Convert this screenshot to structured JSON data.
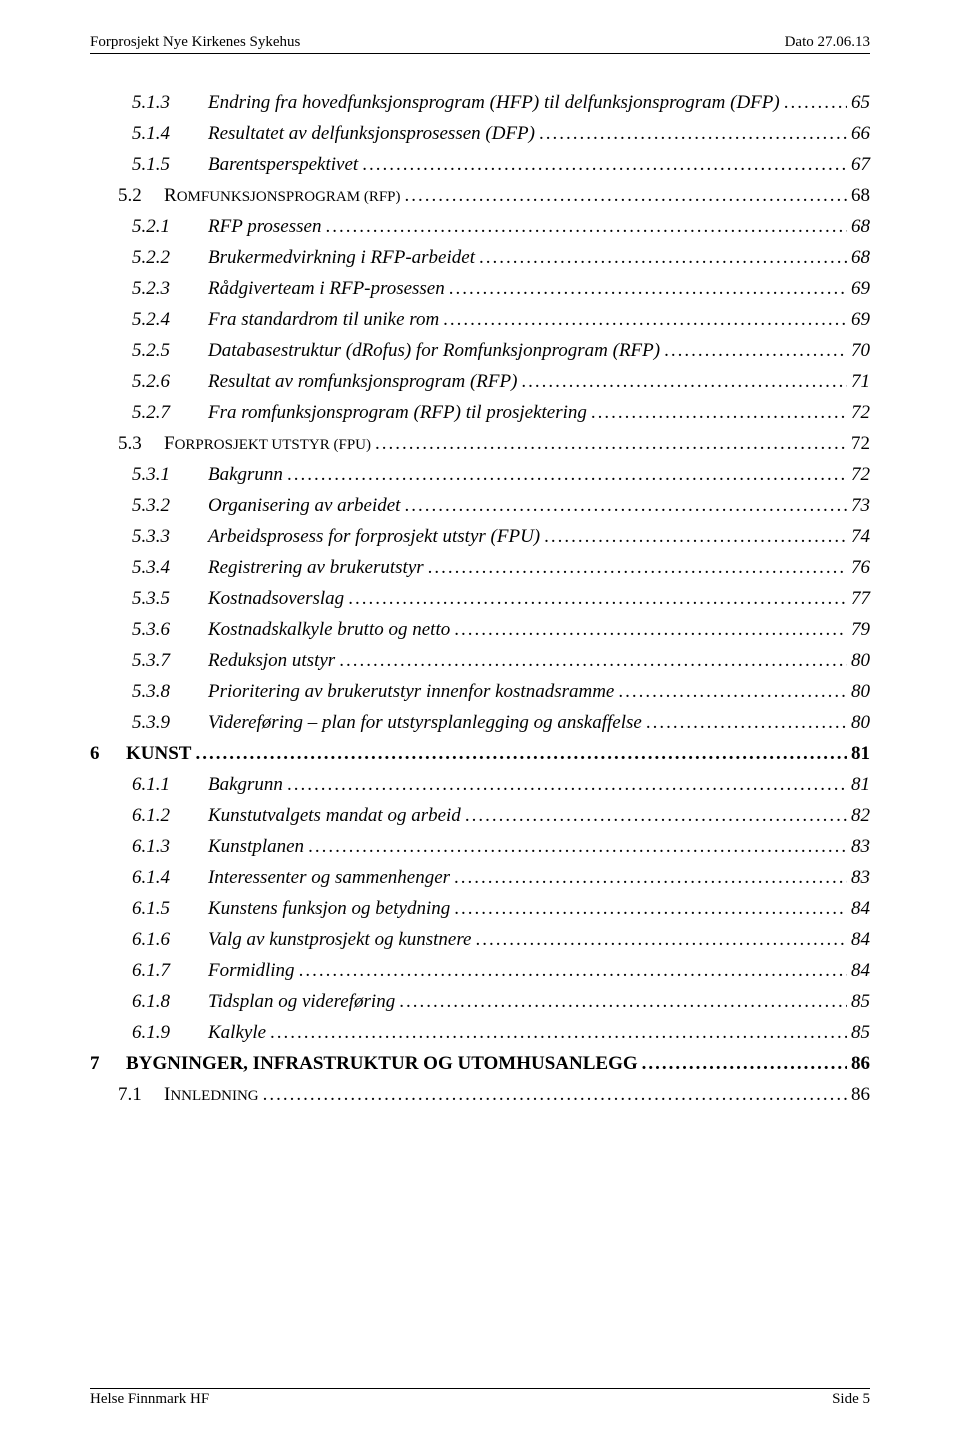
{
  "header": {
    "left": "Forprosjekt Nye Kirkenes Sykehus",
    "right": "Dato 27.06.13"
  },
  "footer": {
    "left": "Helse Finnmark HF",
    "right": "Side 5"
  },
  "toc": [
    {
      "type": "level2",
      "num": "5.1.3",
      "title": "Endring fra hovedfunksjonsprogram (HFP) til delfunksjonsprogram (DFP)",
      "page": "65"
    },
    {
      "type": "level2",
      "num": "5.1.4",
      "title": "Resultatet av delfunksjonsprosessen (DFP)",
      "page": "66"
    },
    {
      "type": "level2",
      "num": "5.1.5",
      "title": "Barentsperspektivet",
      "page": "67"
    },
    {
      "type": "section-caps",
      "num": "5.2",
      "title": "ROMFUNKSJONSPROGRAM (RFP)",
      "page": "68"
    },
    {
      "type": "level2",
      "num": "5.2.1",
      "title": "RFP prosessen",
      "page": "68"
    },
    {
      "type": "level2",
      "num": "5.2.2",
      "title": "Brukermedvirkning i RFP-arbeidet",
      "page": "68"
    },
    {
      "type": "level2",
      "num": "5.2.3",
      "title": "Rådgiverteam i RFP-prosessen",
      "page": "69"
    },
    {
      "type": "level2",
      "num": "5.2.4",
      "title": "Fra standardrom til unike rom",
      "page": "69"
    },
    {
      "type": "level2",
      "num": "5.2.5",
      "title": "Databasestruktur (dRofus) for Romfunksjonprogram (RFP)",
      "page": "70"
    },
    {
      "type": "level2",
      "num": "5.2.6",
      "title": "Resultat av romfunksjonsprogram (RFP)",
      "page": "71"
    },
    {
      "type": "level2",
      "num": "5.2.7",
      "title": "Fra romfunksjonsprogram (RFP) til prosjektering",
      "page": "72"
    },
    {
      "type": "section-caps",
      "num": "5.3",
      "title": "FORPROSJEKT UTSTYR (FPU)",
      "page": "72"
    },
    {
      "type": "level2",
      "num": "5.3.1",
      "title": "Bakgrunn",
      "page": "72"
    },
    {
      "type": "level2",
      "num": "5.3.2",
      "title": "Organisering av arbeidet",
      "page": "73"
    },
    {
      "type": "level2",
      "num": "5.3.3",
      "title": "Arbeidsprosess for forprosjekt utstyr (FPU)",
      "page": "74"
    },
    {
      "type": "level2",
      "num": "5.3.4",
      "title": "Registrering av brukerutstyr",
      "page": "76"
    },
    {
      "type": "level2",
      "num": "5.3.5",
      "title": "Kostnadsoverslag",
      "page": "77"
    },
    {
      "type": "level2",
      "num": "5.3.6",
      "title": "Kostnadskalkyle brutto og netto",
      "page": "79"
    },
    {
      "type": "level2",
      "num": "5.3.7",
      "title": "Reduksjon utstyr",
      "page": "80"
    },
    {
      "type": "level2",
      "num": "5.3.8",
      "title": "Prioritering av brukerutstyr innenfor kostnadsramme",
      "page": "80"
    },
    {
      "type": "level2",
      "num": "5.3.9",
      "title": "Videreføring – plan for utstyrsplanlegging og anskaffelse",
      "page": "80"
    },
    {
      "type": "chapter",
      "num": "6",
      "title": "KUNST",
      "page": "81"
    },
    {
      "type": "level2",
      "num": "6.1.1",
      "title": "Bakgrunn",
      "page": "81"
    },
    {
      "type": "level2",
      "num": "6.1.2",
      "title": "Kunstutvalgets mandat og arbeid",
      "page": "82"
    },
    {
      "type": "level2",
      "num": "6.1.3",
      "title": "Kunstplanen",
      "page": "83"
    },
    {
      "type": "level2",
      "num": "6.1.4",
      "title": "Interessenter og sammenhenger",
      "page": "83"
    },
    {
      "type": "level2",
      "num": "6.1.5",
      "title": "Kunstens funksjon og betydning",
      "page": "84"
    },
    {
      "type": "level2",
      "num": "6.1.6",
      "title": "Valg av kunstprosjekt og kunstnere",
      "page": "84"
    },
    {
      "type": "level2",
      "num": "6.1.7",
      "title": "Formidling",
      "page": "84"
    },
    {
      "type": "level2",
      "num": "6.1.8",
      "title": "Tidsplan og videreføring",
      "page": "85"
    },
    {
      "type": "level2",
      "num": "6.1.9",
      "title": "Kalkyle",
      "page": "85"
    },
    {
      "type": "chapter",
      "num": "7",
      "title": "BYGNINGER, INFRASTRUKTUR OG UTOMHUSANLEGG",
      "page": "86"
    },
    {
      "type": "section-caps",
      "num": "7.1",
      "title": "INNLEDNING",
      "page": "86"
    }
  ]
}
